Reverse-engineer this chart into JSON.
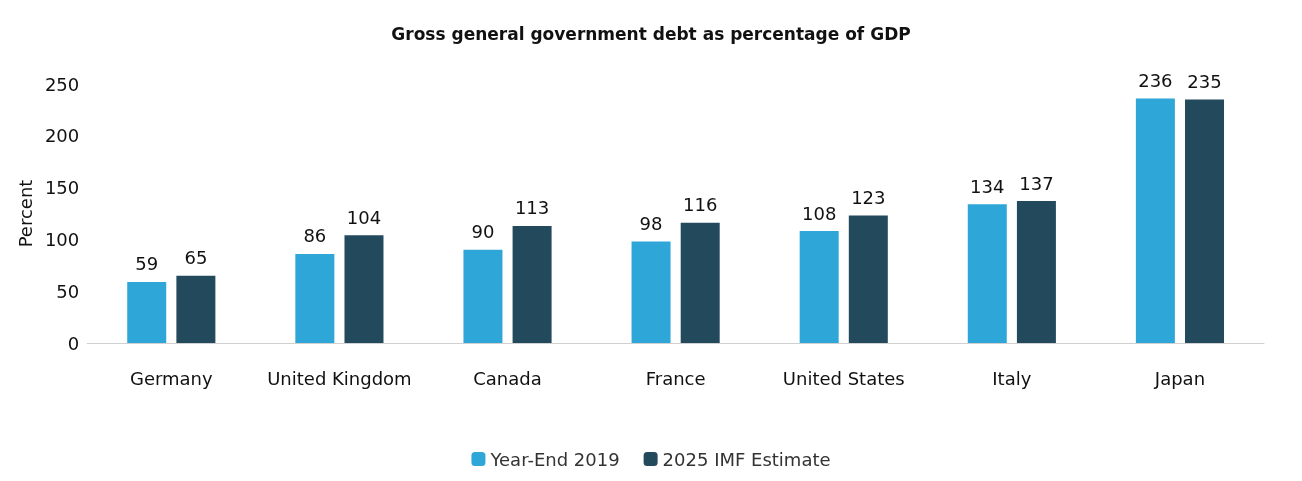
{
  "chart_data": {
    "type": "bar",
    "title": "Gross general government debt as percentage of GDP",
    "ylabel": "Percent",
    "categories": [
      "Germany",
      "United Kingdom",
      "Canada",
      "France",
      "United States",
      "Italy",
      "Japan"
    ],
    "series": [
      {
        "name": "Year-End 2019",
        "color": "#2ea6d8",
        "values": [
          59,
          86,
          90,
          98,
          108,
          134,
          236
        ]
      },
      {
        "name": "2025 IMF Estimate",
        "color": "#23495d",
        "values": [
          65,
          104,
          113,
          116,
          123,
          137,
          235
        ]
      }
    ],
    "ylim": [
      0,
      250
    ],
    "yticks": [
      0,
      50,
      100,
      150,
      200,
      250
    ],
    "grid": false,
    "legend": "bottom",
    "data_labels": true
  }
}
